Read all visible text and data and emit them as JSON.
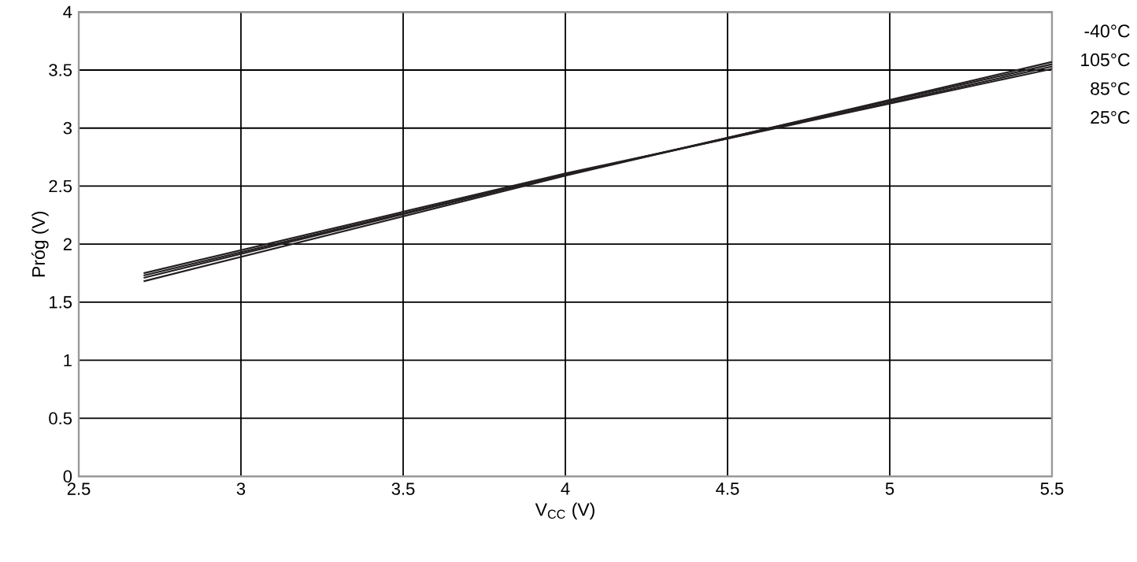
{
  "chart_data": {
    "type": "line",
    "xlabel": "V$_{CC}$ (V)",
    "ylabel": "Próg (V)",
    "xlim": [
      2.5,
      5.5
    ],
    "xticks": [
      2.5,
      3,
      3.5,
      4,
      4.5,
      5,
      5.5
    ],
    "ylim": [
      0,
      4
    ],
    "yticks": [
      0,
      0.5,
      1,
      1.5,
      2,
      2.5,
      3,
      3.5,
      4
    ],
    "grid": true,
    "line_style": "solid",
    "series": [
      {
        "name": "-40°C",
        "color": "#231f20",
        "x": [
          2.7,
          4.0,
          5.5
        ],
        "values": [
          1.68,
          2.59,
          3.57
        ]
      },
      {
        "name": "105°C",
        "color": "#231f20",
        "x": [
          2.7,
          4.0,
          5.5
        ],
        "values": [
          1.71,
          2.6,
          3.55
        ]
      },
      {
        "name": "85°C",
        "color": "#231f20",
        "x": [
          2.7,
          4.0,
          5.5
        ],
        "values": [
          1.73,
          2.6,
          3.53
        ]
      },
      {
        "name": "25°C",
        "color": "#231f20",
        "x": [
          2.7,
          4.0,
          5.5
        ],
        "values": [
          1.75,
          2.61,
          3.51
        ]
      }
    ]
  }
}
